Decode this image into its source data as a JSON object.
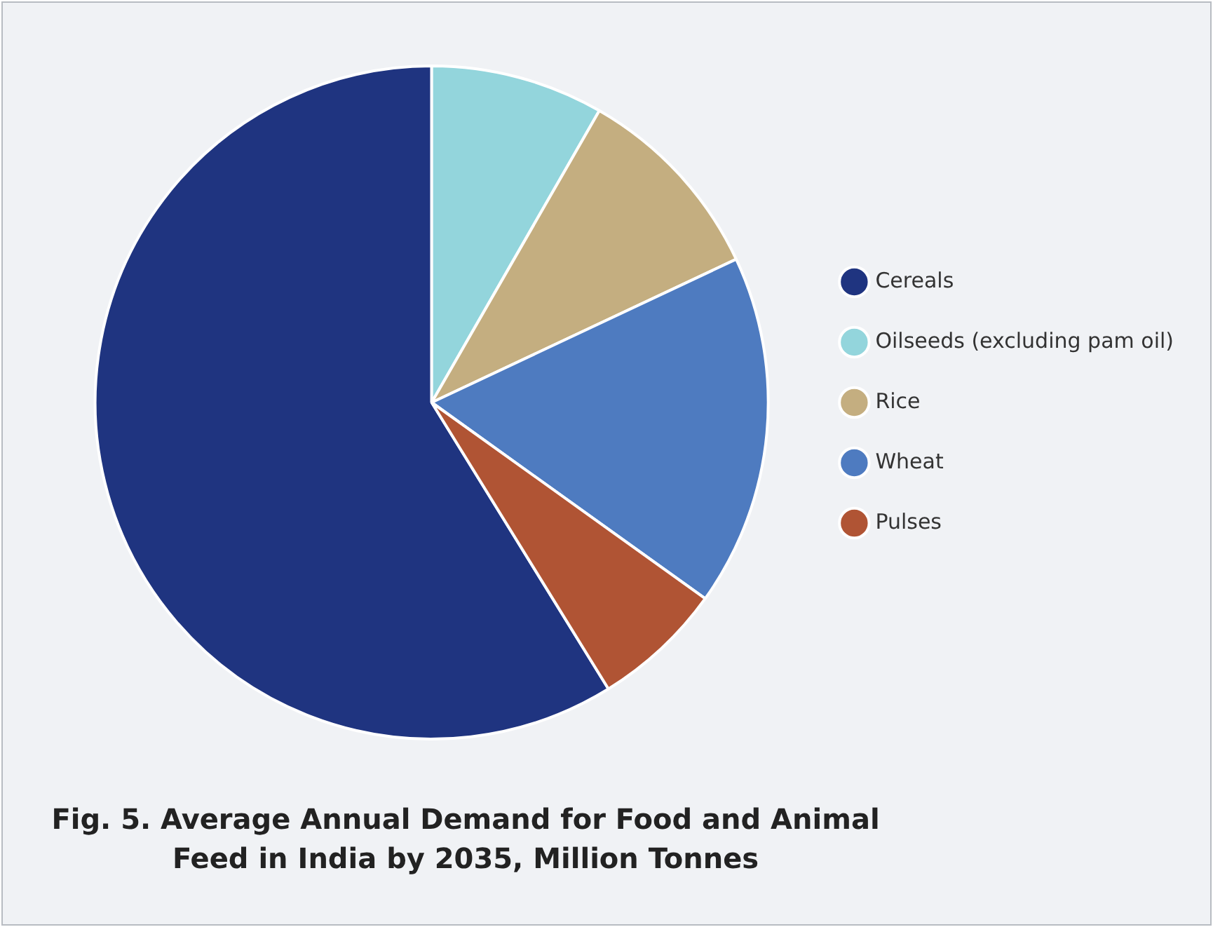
{
  "chart_data": {
    "type": "pie",
    "title": "Fig. 5. Average Annual Demand for Food and Animal Feed in India by 2035, Million Tonnes",
    "categories": [
      "Cereals",
      "Oilseeds (excluding pam oil)",
      "Rice",
      "Wheat",
      "Pulses"
    ],
    "values": [
      58.8,
      8.3,
      9.7,
      16.9,
      6.3
    ],
    "colors": [
      "#1f3480",
      "#93d5dc",
      "#c4ae80",
      "#4e7bc0",
      "#b05434"
    ],
    "legend": "right"
  }
}
